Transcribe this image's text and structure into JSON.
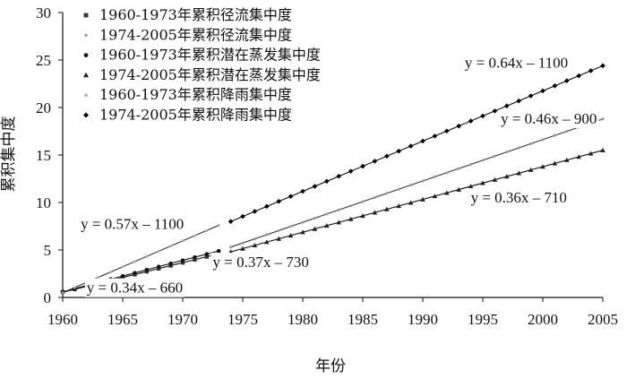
{
  "chart_data": {
    "type": "scatter",
    "title": "",
    "xlabel": "年份",
    "ylabel": "累积集中度",
    "xlim": [
      1960,
      2005
    ],
    "ylim": [
      0,
      30
    ],
    "xticks": [
      1960,
      1965,
      1970,
      1975,
      1980,
      1985,
      1990,
      1995,
      2000,
      2005
    ],
    "yticks": [
      0,
      5,
      10,
      15,
      20,
      25,
      30
    ],
    "grid": false,
    "legend_position": "top-left",
    "series": [
      {
        "name": "1960-1973年累积径流集中度",
        "marker": "square",
        "color": "#333333",
        "x_start": 1960,
        "x_end": 1973,
        "y_start": 0.55,
        "y_end": 4.6,
        "trend": "y = 0.34x – 660"
      },
      {
        "name": "1974-2005年累积径流集中度",
        "marker": "dot",
        "color": "#999999",
        "x_start": 1974,
        "x_end": 2005,
        "y_start": 5.3,
        "y_end": 18.8,
        "trend": "y = 0.46x – 900"
      },
      {
        "name": "1960-1973年累积潜在蒸发集中度",
        "marker": "circle",
        "color": "#111111",
        "x_start": 1960,
        "x_end": 1973,
        "y_start": 0.6,
        "y_end": 4.9,
        "trend": "y = 0.37x – 730"
      },
      {
        "name": "1974-2005年累积潜在蒸发集中度",
        "marker": "triangle",
        "color": "#222222",
        "x_start": 1974,
        "x_end": 2005,
        "y_start": 4.8,
        "y_end": 15.5,
        "trend": "y = 0.36x – 710"
      },
      {
        "name": "1960-1973年累积降雨集中度",
        "marker": "dot",
        "color": "#aaaaaa",
        "x_start": 1960,
        "x_end": 1973,
        "y_start": 0.5,
        "y_end": 7.6,
        "trend": "y = 0.57x – 1100"
      },
      {
        "name": "1974-2005年累积降雨集中度",
        "marker": "diamond",
        "color": "#000000",
        "x_start": 1974,
        "x_end": 2005,
        "y_start": 8.0,
        "y_end": 24.4,
        "trend": "y = 0.64x – 1100"
      }
    ],
    "trendline_labels": [
      {
        "text": "y = 0.64x – 1100",
        "x": 1993.5,
        "y": 24.2
      },
      {
        "text": "y = 0.46x – 900",
        "x": 1996.5,
        "y": 18.3
      },
      {
        "text": "y = 0.36x – 710",
        "x": 1994.0,
        "y": 10.0
      },
      {
        "text": "y = 0.57x – 1100",
        "x": 1961.5,
        "y": 7.2
      },
      {
        "text": "y = 0.37x – 730",
        "x": 1972.5,
        "y": 3.2
      },
      {
        "text": "y = 0.34x – 660",
        "x": 1962.0,
        "y": 0.5
      }
    ]
  }
}
